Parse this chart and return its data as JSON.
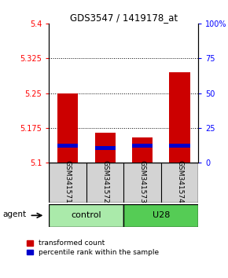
{
  "title": "GDS3547 / 1419178_at",
  "samples": [
    "GSM341571",
    "GSM341572",
    "GSM341573",
    "GSM341574"
  ],
  "red_values": [
    5.25,
    5.165,
    5.155,
    5.295
  ],
  "blue_values": [
    5.133,
    5.128,
    5.133,
    5.133
  ],
  "base_value": 5.1,
  "ylim_min": 5.1,
  "ylim_max": 5.4,
  "yticks_left": [
    5.1,
    5.175,
    5.25,
    5.325,
    5.4
  ],
  "yticks_right": [
    0,
    25,
    50,
    75,
    100
  ],
  "bar_width": 0.55,
  "red_color": "#cc0000",
  "blue_color": "#0000cc",
  "blue_bar_height": 0.007,
  "legend_red": "transformed count",
  "legend_blue": "percentile rank within the sample",
  "agent_label": "agent",
  "control_color": "#aaeaaa",
  "u28_color": "#55cc55",
  "sample_bg": "#d3d3d3"
}
